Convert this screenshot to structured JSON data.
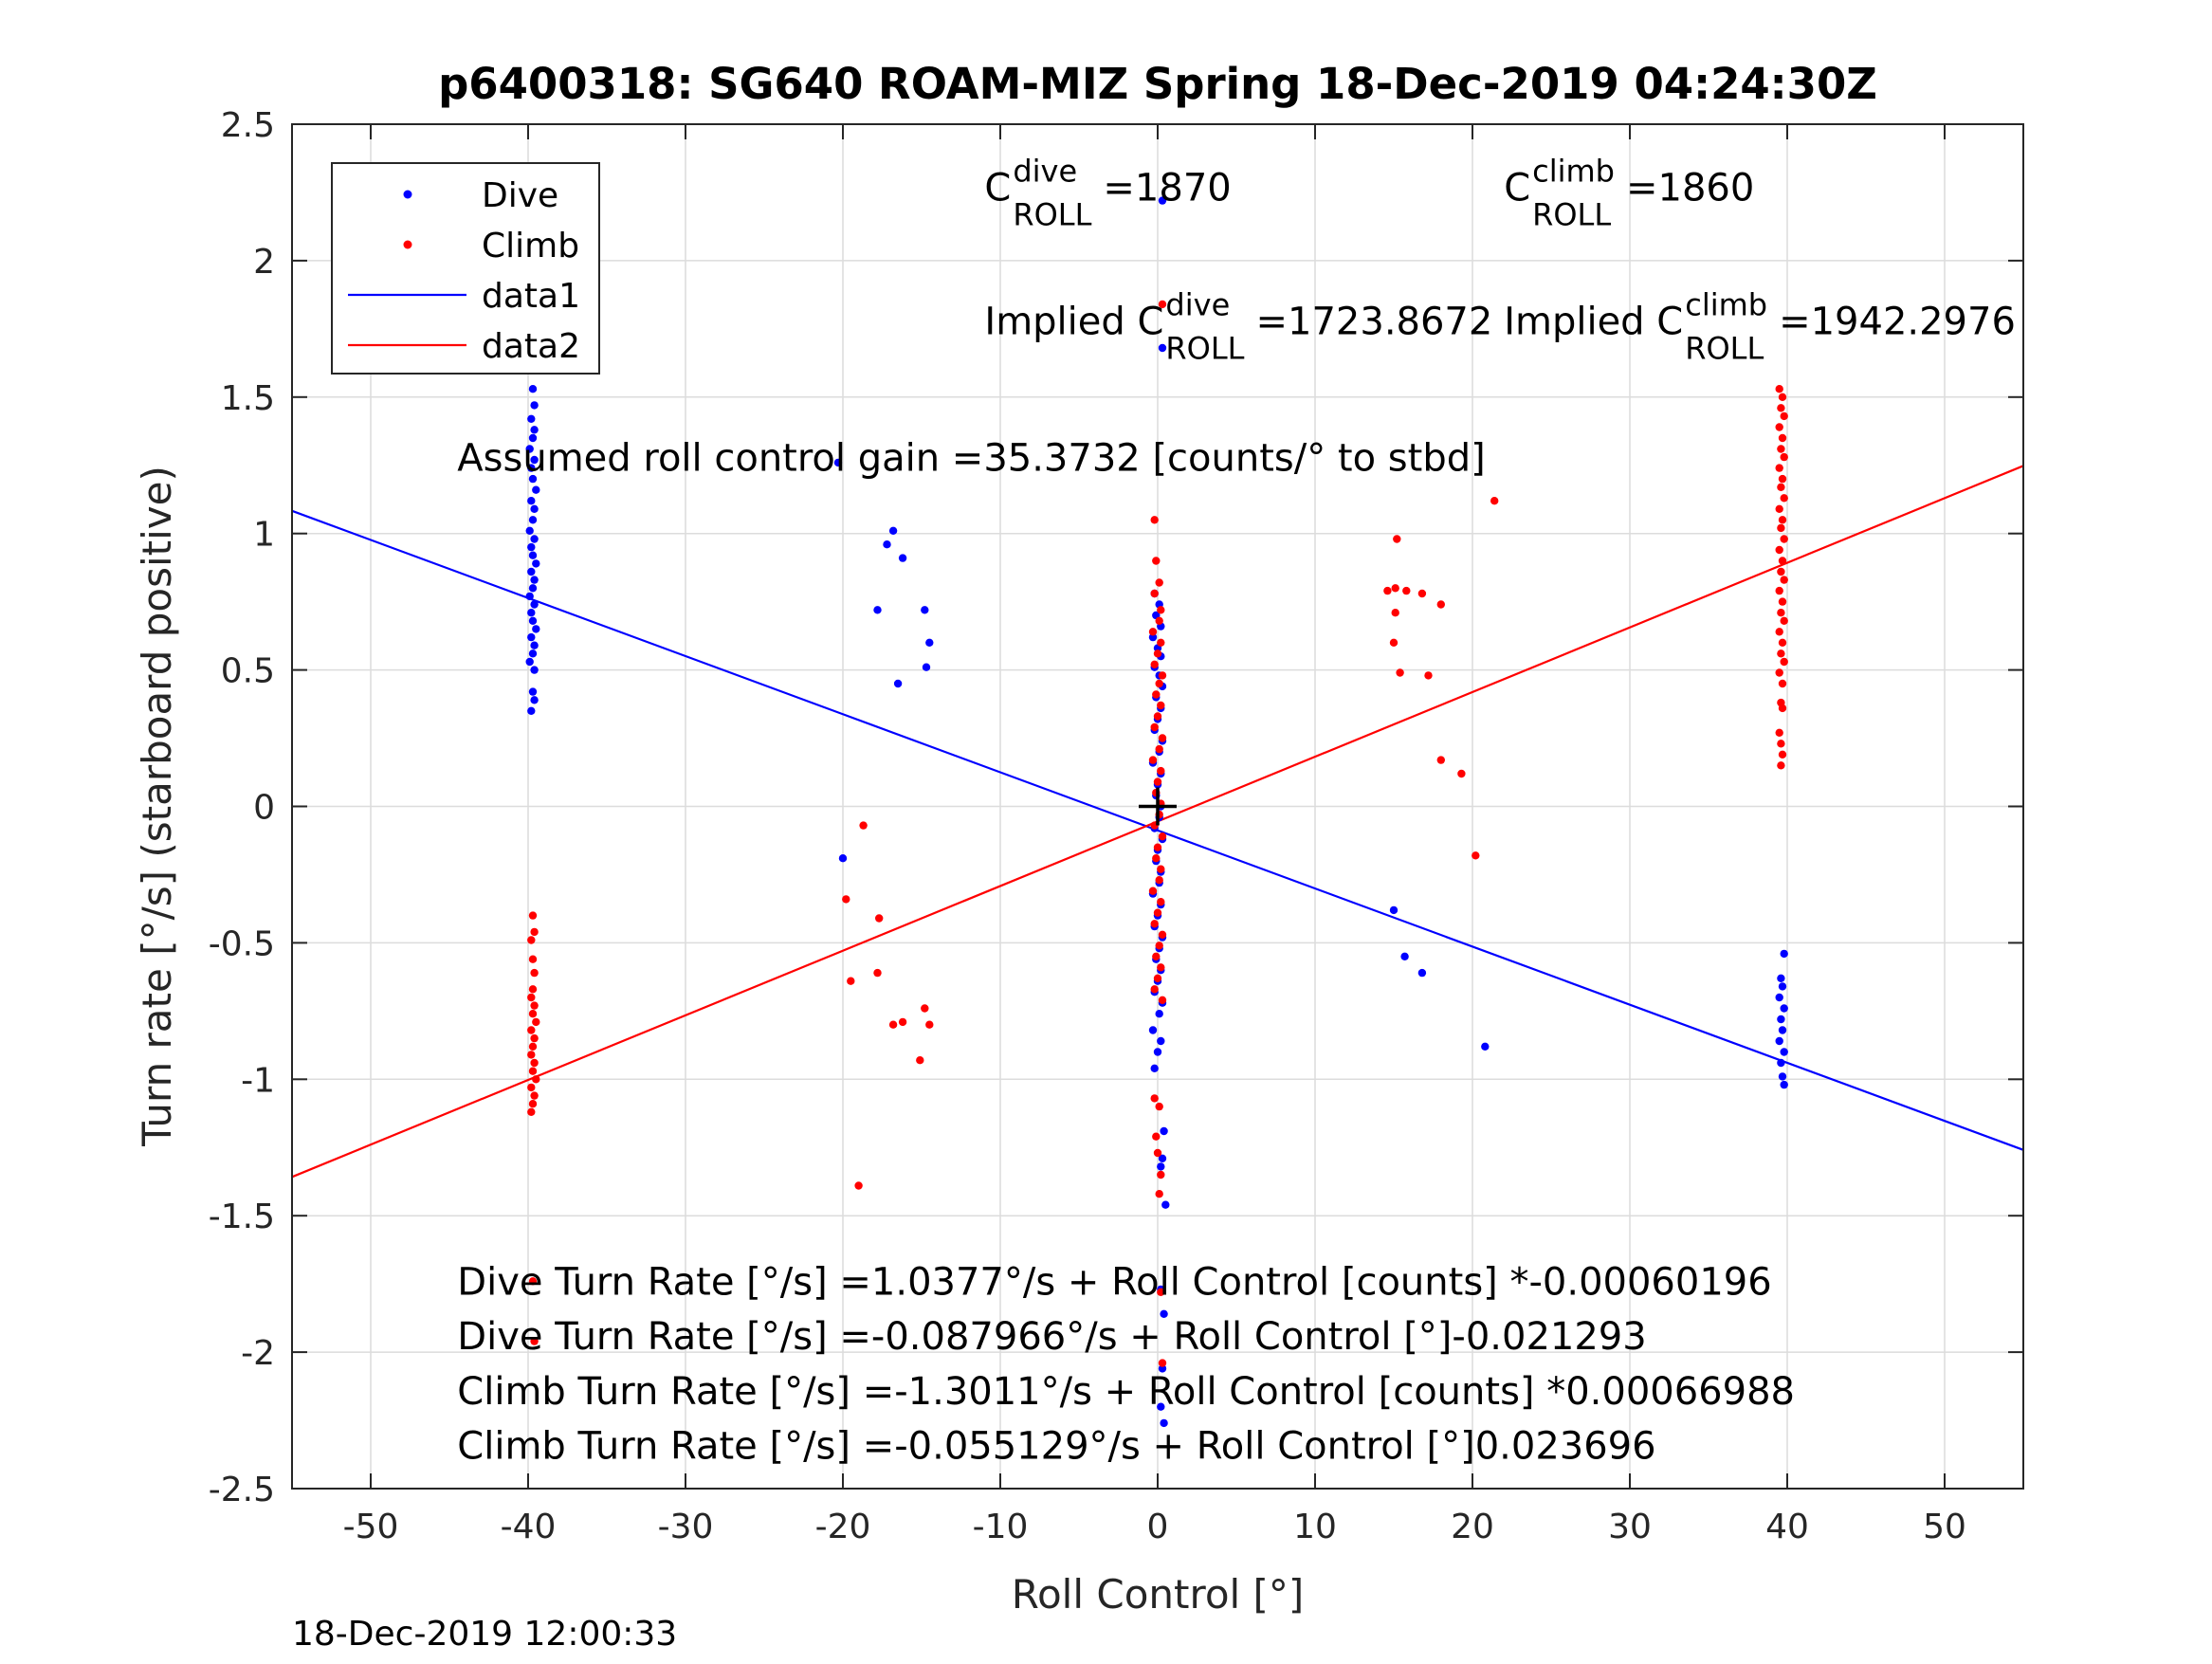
{
  "chart_data": {
    "type": "scatter",
    "title": "p6400318: SG640 ROAM-MIZ Spring 18-Dec-2019 04:24:30Z",
    "xlabel": "Roll Control [°]",
    "ylabel": "Turn rate [°/s] (starboard positive)",
    "xlim": [
      -55,
      55
    ],
    "ylim": [
      -2.5,
      2.5
    ],
    "xticks": [
      -50,
      -40,
      -30,
      -20,
      -10,
      0,
      10,
      20,
      30,
      40,
      50
    ],
    "xtick_labels": [
      "-50",
      "-40",
      "-30",
      "-20",
      "-10",
      "0",
      "10",
      "20",
      "30",
      "40",
      "50"
    ],
    "yticks": [
      -2.5,
      -2,
      -1.5,
      -1,
      -0.5,
      0,
      0.5,
      1,
      1.5,
      2,
      2.5
    ],
    "ytick_labels": [
      "-2.5",
      "-2",
      "-1.5",
      "-1",
      "-0.5",
      "0",
      "0.5",
      "1",
      "1.5",
      "2",
      "2.5"
    ],
    "grid": true,
    "legend_position": "top-left",
    "colors": {
      "dive": "#0000ff",
      "climb": "#ff0000",
      "marker": "#000000"
    },
    "series": [
      {
        "name": "Dive",
        "kind": "points",
        "color": "#0000ff",
        "points": [
          [
            -39.7,
            1.53
          ],
          [
            -39.6,
            1.47
          ],
          [
            -39.8,
            1.42
          ],
          [
            -39.6,
            1.38
          ],
          [
            -39.7,
            1.35
          ],
          [
            -39.9,
            1.31
          ],
          [
            -39.6,
            1.27
          ],
          [
            -39.8,
            1.24
          ],
          [
            -39.7,
            1.2
          ],
          [
            -39.5,
            1.16
          ],
          [
            -39.8,
            1.12
          ],
          [
            -39.6,
            1.09
          ],
          [
            -39.7,
            1.05
          ],
          [
            -39.9,
            1.01
          ],
          [
            -39.6,
            0.98
          ],
          [
            -39.8,
            0.95
          ],
          [
            -39.7,
            0.92
          ],
          [
            -39.5,
            0.89
          ],
          [
            -39.8,
            0.86
          ],
          [
            -39.6,
            0.83
          ],
          [
            -39.7,
            0.8
          ],
          [
            -39.9,
            0.77
          ],
          [
            -39.6,
            0.74
          ],
          [
            -39.8,
            0.71
          ],
          [
            -39.7,
            0.68
          ],
          [
            -39.5,
            0.65
          ],
          [
            -39.8,
            0.62
          ],
          [
            -39.6,
            0.59
          ],
          [
            -39.7,
            0.56
          ],
          [
            -39.9,
            0.53
          ],
          [
            -39.6,
            0.5
          ],
          [
            -39.7,
            0.42
          ],
          [
            -39.6,
            0.39
          ],
          [
            -39.8,
            0.35
          ],
          [
            -20.3,
            1.26
          ],
          [
            -16.8,
            1.01
          ],
          [
            -17.2,
            0.96
          ],
          [
            -16.2,
            0.91
          ],
          [
            -17.8,
            0.72
          ],
          [
            -14.8,
            0.72
          ],
          [
            -14.5,
            0.6
          ],
          [
            -14.7,
            0.51
          ],
          [
            -16.5,
            0.45
          ],
          [
            -20.0,
            -0.19
          ],
          [
            -0.2,
            0.78
          ],
          [
            0.1,
            0.74
          ],
          [
            -0.1,
            0.7
          ],
          [
            0.2,
            0.66
          ],
          [
            -0.3,
            0.62
          ],
          [
            0.0,
            0.58
          ],
          [
            0.2,
            0.55
          ],
          [
            -0.2,
            0.51
          ],
          [
            0.1,
            0.48
          ],
          [
            0.3,
            0.44
          ],
          [
            -0.1,
            0.4
          ],
          [
            0.2,
            0.36
          ],
          [
            0.0,
            0.32
          ],
          [
            -0.2,
            0.28
          ],
          [
            0.3,
            0.24
          ],
          [
            0.1,
            0.2
          ],
          [
            -0.3,
            0.16
          ],
          [
            0.2,
            0.12
          ],
          [
            0.0,
            0.08
          ],
          [
            -0.1,
            0.04
          ],
          [
            0.2,
            0.0
          ],
          [
            0.1,
            -0.04
          ],
          [
            -0.2,
            -0.08
          ],
          [
            0.3,
            -0.12
          ],
          [
            0.0,
            -0.16
          ],
          [
            -0.1,
            -0.2
          ],
          [
            0.2,
            -0.24
          ],
          [
            0.1,
            -0.28
          ],
          [
            -0.3,
            -0.32
          ],
          [
            0.2,
            -0.36
          ],
          [
            0.0,
            -0.4
          ],
          [
            -0.2,
            -0.44
          ],
          [
            0.3,
            -0.48
          ],
          [
            0.1,
            -0.52
          ],
          [
            -0.1,
            -0.56
          ],
          [
            0.2,
            -0.6
          ],
          [
            0.0,
            -0.64
          ],
          [
            -0.2,
            -0.68
          ],
          [
            0.3,
            -0.72
          ],
          [
            0.1,
            -0.76
          ],
          [
            -0.3,
            -0.82
          ],
          [
            0.2,
            -0.86
          ],
          [
            0.0,
            -0.9
          ],
          [
            -0.2,
            -0.96
          ],
          [
            0.3,
            2.22
          ],
          [
            0.3,
            1.68
          ],
          [
            0.4,
            -1.19
          ],
          [
            0.3,
            -1.29
          ],
          [
            0.2,
            -1.32
          ],
          [
            0.5,
            -1.46
          ],
          [
            0.2,
            -1.77
          ],
          [
            0.4,
            -1.86
          ],
          [
            0.3,
            -2.06
          ],
          [
            0.2,
            -2.2
          ],
          [
            0.4,
            -2.26
          ],
          [
            15.0,
            -0.38
          ],
          [
            15.7,
            -0.55
          ],
          [
            16.8,
            -0.61
          ],
          [
            20.8,
            -0.88
          ],
          [
            39.8,
            -0.54
          ],
          [
            39.6,
            -0.63
          ],
          [
            39.7,
            -0.66
          ],
          [
            39.5,
            -0.7
          ],
          [
            39.8,
            -0.74
          ],
          [
            39.6,
            -0.78
          ],
          [
            39.7,
            -0.82
          ],
          [
            39.5,
            -0.86
          ],
          [
            39.8,
            -0.9
          ],
          [
            39.6,
            -0.94
          ],
          [
            39.7,
            -0.99
          ],
          [
            39.8,
            -1.02
          ]
        ]
      },
      {
        "name": "Climb",
        "kind": "points",
        "color": "#ff0000",
        "points": [
          [
            -39.7,
            -0.4
          ],
          [
            -39.6,
            -0.46
          ],
          [
            -39.8,
            -0.49
          ],
          [
            -39.7,
            -0.56
          ],
          [
            -39.6,
            -0.61
          ],
          [
            -39.7,
            -0.67
          ],
          [
            -39.8,
            -0.7
          ],
          [
            -39.6,
            -0.73
          ],
          [
            -39.7,
            -0.76
          ],
          [
            -39.5,
            -0.79
          ],
          [
            -39.8,
            -0.82
          ],
          [
            -39.6,
            -0.85
          ],
          [
            -39.7,
            -0.88
          ],
          [
            -39.8,
            -0.91
          ],
          [
            -39.6,
            -0.94
          ],
          [
            -39.7,
            -0.97
          ],
          [
            -39.5,
            -1.0
          ],
          [
            -39.8,
            -1.03
          ],
          [
            -39.6,
            -1.06
          ],
          [
            -39.7,
            -1.09
          ],
          [
            -39.8,
            -1.12
          ],
          [
            -39.7,
            -1.74
          ],
          [
            -39.6,
            -1.96
          ],
          [
            -18.7,
            -0.07
          ],
          [
            -19.8,
            -0.34
          ],
          [
            -17.7,
            -0.41
          ],
          [
            -19.5,
            -0.64
          ],
          [
            -17.8,
            -0.61
          ],
          [
            -16.8,
            -0.8
          ],
          [
            -16.2,
            -0.79
          ],
          [
            -14.8,
            -0.74
          ],
          [
            -14.5,
            -0.8
          ],
          [
            -15.1,
            -0.93
          ],
          [
            -19.0,
            -1.39
          ],
          [
            -0.2,
            1.05
          ],
          [
            -0.1,
            0.9
          ],
          [
            0.1,
            0.82
          ],
          [
            -0.2,
            0.78
          ],
          [
            0.2,
            0.72
          ],
          [
            0.1,
            0.68
          ],
          [
            -0.3,
            0.64
          ],
          [
            0.2,
            0.6
          ],
          [
            0.0,
            0.56
          ],
          [
            -0.2,
            0.52
          ],
          [
            0.3,
            0.48
          ],
          [
            0.1,
            0.45
          ],
          [
            -0.1,
            0.41
          ],
          [
            0.2,
            0.37
          ],
          [
            0.0,
            0.33
          ],
          [
            -0.2,
            0.29
          ],
          [
            0.3,
            0.25
          ],
          [
            0.1,
            0.21
          ],
          [
            -0.3,
            0.17
          ],
          [
            0.2,
            0.13
          ],
          [
            0.0,
            0.09
          ],
          [
            -0.1,
            0.05
          ],
          [
            0.2,
            0.01
          ],
          [
            0.1,
            -0.03
          ],
          [
            -0.2,
            -0.07
          ],
          [
            0.3,
            -0.11
          ],
          [
            0.0,
            -0.15
          ],
          [
            -0.1,
            -0.19
          ],
          [
            0.2,
            -0.23
          ],
          [
            0.1,
            -0.27
          ],
          [
            -0.3,
            -0.31
          ],
          [
            0.2,
            -0.35
          ],
          [
            0.0,
            -0.39
          ],
          [
            -0.2,
            -0.43
          ],
          [
            0.3,
            -0.47
          ],
          [
            0.1,
            -0.51
          ],
          [
            -0.1,
            -0.55
          ],
          [
            0.2,
            -0.59
          ],
          [
            0.0,
            -0.63
          ],
          [
            -0.2,
            -0.67
          ],
          [
            0.3,
            -0.71
          ],
          [
            0.3,
            1.84
          ],
          [
            -0.2,
            -1.07
          ],
          [
            0.1,
            -1.1
          ],
          [
            -0.1,
            -1.21
          ],
          [
            0.0,
            -1.27
          ],
          [
            0.2,
            -1.35
          ],
          [
            0.1,
            -1.42
          ],
          [
            0.2,
            -1.78
          ],
          [
            0.3,
            -2.04
          ],
          [
            15.2,
            0.98
          ],
          [
            14.6,
            0.79
          ],
          [
            15.1,
            0.8
          ],
          [
            15.8,
            0.79
          ],
          [
            16.8,
            0.78
          ],
          [
            18.0,
            0.74
          ],
          [
            15.1,
            0.71
          ],
          [
            15.0,
            0.6
          ],
          [
            15.4,
            0.49
          ],
          [
            17.2,
            0.48
          ],
          [
            18.0,
            0.17
          ],
          [
            19.3,
            0.12
          ],
          [
            20.2,
            -0.18
          ],
          [
            21.4,
            1.12
          ],
          [
            39.5,
            1.53
          ],
          [
            39.7,
            1.5
          ],
          [
            39.6,
            1.46
          ],
          [
            39.8,
            1.43
          ],
          [
            39.5,
            1.39
          ],
          [
            39.7,
            1.35
          ],
          [
            39.6,
            1.31
          ],
          [
            39.8,
            1.28
          ],
          [
            39.5,
            1.24
          ],
          [
            39.7,
            1.2
          ],
          [
            39.6,
            1.17
          ],
          [
            39.8,
            1.13
          ],
          [
            39.5,
            1.09
          ],
          [
            39.7,
            1.05
          ],
          [
            39.6,
            1.02
          ],
          [
            39.8,
            0.98
          ],
          [
            39.5,
            0.94
          ],
          [
            39.7,
            0.9
          ],
          [
            39.6,
            0.86
          ],
          [
            39.8,
            0.83
          ],
          [
            39.5,
            0.79
          ],
          [
            39.7,
            0.75
          ],
          [
            39.6,
            0.71
          ],
          [
            39.8,
            0.68
          ],
          [
            39.5,
            0.64
          ],
          [
            39.7,
            0.6
          ],
          [
            39.6,
            0.56
          ],
          [
            39.8,
            0.53
          ],
          [
            39.5,
            0.49
          ],
          [
            39.7,
            0.45
          ],
          [
            39.6,
            0.38
          ],
          [
            39.7,
            0.36
          ],
          [
            39.5,
            0.27
          ],
          [
            39.6,
            0.23
          ],
          [
            39.7,
            0.19
          ],
          [
            39.6,
            0.15
          ]
        ]
      },
      {
        "name": "data1",
        "kind": "line",
        "color": "#0000ff",
        "points": [
          [
            -55,
            1.083
          ],
          [
            55,
            -1.259
          ]
        ]
      },
      {
        "name": "data2",
        "kind": "line",
        "color": "#ff0000",
        "points": [
          [
            -55,
            -1.358
          ],
          [
            55,
            1.248
          ]
        ]
      }
    ],
    "center_marker": [
      0,
      0
    ],
    "annotations": [
      {
        "id": "c-roll-dive",
        "main": "C",
        "sup": "dive",
        "sub": "ROLL",
        "rest": "=1870",
        "at": [
          -11,
          2.22
        ]
      },
      {
        "id": "c-roll-climb",
        "main": "C",
        "sup": "climb",
        "sub": "ROLL",
        "rest": "=1860",
        "at": [
          22,
          2.22
        ]
      },
      {
        "id": "implied-dive",
        "main": "Implied C",
        "sup": "dive",
        "sub": "ROLL",
        "rest": "=1723.8672",
        "at": [
          -11,
          1.73
        ]
      },
      {
        "id": "implied-climb",
        "main": "Implied C",
        "sup": "climb",
        "sub": "ROLL",
        "rest": "=1942.2976",
        "at": [
          22,
          1.73
        ]
      },
      {
        "id": "gain",
        "text": "Assumed roll control gain =35.3732 [counts/° to stbd]",
        "at": [
          -44.5,
          1.23
        ]
      },
      {
        "id": "eq-dive-counts",
        "text": "Dive Turn Rate [°/s] =1.0377°/s + Roll Control [counts] *-0.00060196",
        "at": [
          -44.5,
          -1.79
        ]
      },
      {
        "id": "eq-dive-deg",
        "text": "Dive Turn Rate [°/s] =-0.087966°/s + Roll Control [°]-0.021293",
        "at": [
          -44.5,
          -1.99
        ]
      },
      {
        "id": "eq-climb-counts",
        "text": "Climb Turn Rate [°/s] =-1.3011°/s + Roll Control [counts] *0.00066988",
        "at": [
          -44.5,
          -2.19
        ]
      },
      {
        "id": "eq-climb-deg",
        "text": "Climb Turn Rate [°/s] =-0.055129°/s + Roll Control [°]0.023696",
        "at": [
          -44.5,
          -2.39
        ]
      }
    ]
  },
  "footer": {
    "timestamp": "18-Dec-2019 12:00:33"
  }
}
